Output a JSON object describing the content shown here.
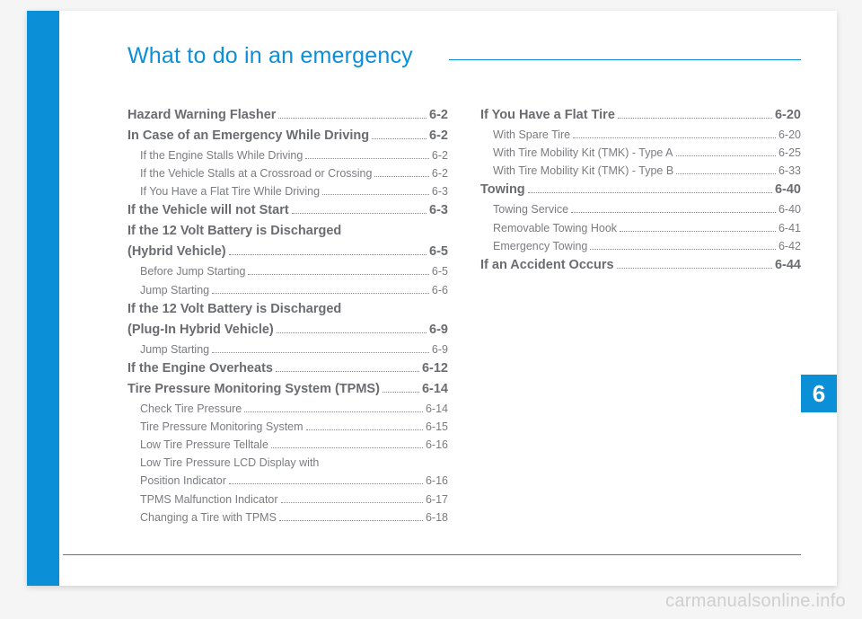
{
  "title": "What to do in an emergency",
  "chapter_number": "6",
  "watermark": "carmanualsonline.info",
  "colors": {
    "accent": "#0b8fd6",
    "page_bg": "#ffffff",
    "body_bg": "#f5f5f5",
    "text": "#6d6f73",
    "watermark": "#cfcfcf"
  },
  "left_column": [
    {
      "level": "main",
      "title": "Hazard Warning Flasher",
      "page": "6-2"
    },
    {
      "level": "main",
      "title": "In Case of an Emergency While Driving",
      "page": "6-2"
    },
    {
      "level": "sub",
      "title": "If the Engine Stalls While Driving",
      "page": "6-2"
    },
    {
      "level": "sub",
      "title": "If the Vehicle Stalls at a Crossroad or Crossing",
      "page": "6-2"
    },
    {
      "level": "sub",
      "title": "If You Have a Flat Tire While Driving",
      "page": "6-3"
    },
    {
      "level": "main",
      "title": "If the Vehicle will not Start",
      "page": "6-3"
    },
    {
      "level": "main",
      "title": "If the 12 Volt Battery is Discharged",
      "page": ""
    },
    {
      "level": "main",
      "title": "(Hybrid Vehicle)",
      "page": "6-5"
    },
    {
      "level": "sub",
      "title": "Before Jump Starting",
      "page": "6-5"
    },
    {
      "level": "sub",
      "title": "Jump Starting",
      "page": "6-6"
    },
    {
      "level": "main",
      "title": "If the 12 Volt Battery is Discharged",
      "page": ""
    },
    {
      "level": "main",
      "title": "(Plug-In Hybrid Vehicle)",
      "page": "6-9"
    },
    {
      "level": "sub",
      "title": "Jump Starting",
      "page": "6-9"
    },
    {
      "level": "main",
      "title": "If the Engine Overheats",
      "page": "6-12"
    },
    {
      "level": "main",
      "title": "Tire Pressure Monitoring System (TPMS)",
      "page": "6-14"
    },
    {
      "level": "sub",
      "title": "Check Tire Pressure",
      "page": "6-14"
    },
    {
      "level": "sub",
      "title": "Tire Pressure Monitoring System",
      "page": "6-15"
    },
    {
      "level": "sub",
      "title": "Low Tire Pressure Telltale",
      "page": "6-16"
    },
    {
      "level": "sub",
      "title": "Low Tire Pressure LCD Display with",
      "page": ""
    },
    {
      "level": "sub",
      "title": "Position Indicator",
      "page": "6-16"
    },
    {
      "level": "sub",
      "title": "TPMS Malfunction Indicator",
      "page": "6-17"
    },
    {
      "level": "sub",
      "title": "Changing a Tire with TPMS",
      "page": "6-18"
    }
  ],
  "right_column": [
    {
      "level": "main",
      "title": "If You Have a Flat Tire",
      "page": "6-20"
    },
    {
      "level": "sub",
      "title": "With Spare Tire",
      "page": "6-20"
    },
    {
      "level": "sub",
      "title": "With Tire Mobility Kit (TMK) - Type A",
      "page": "6-25"
    },
    {
      "level": "sub",
      "title": "With Tire Mobility Kit (TMK) - Type B",
      "page": "6-33"
    },
    {
      "level": "main",
      "title": "Towing",
      "page": "6-40"
    },
    {
      "level": "sub",
      "title": "Towing Service",
      "page": "6-40"
    },
    {
      "level": "sub",
      "title": "Removable Towing Hook",
      "page": "6-41"
    },
    {
      "level": "sub",
      "title": "Emergency Towing",
      "page": "6-42"
    },
    {
      "level": "main",
      "title": "If an Accident Occurs",
      "page": "6-44"
    }
  ]
}
